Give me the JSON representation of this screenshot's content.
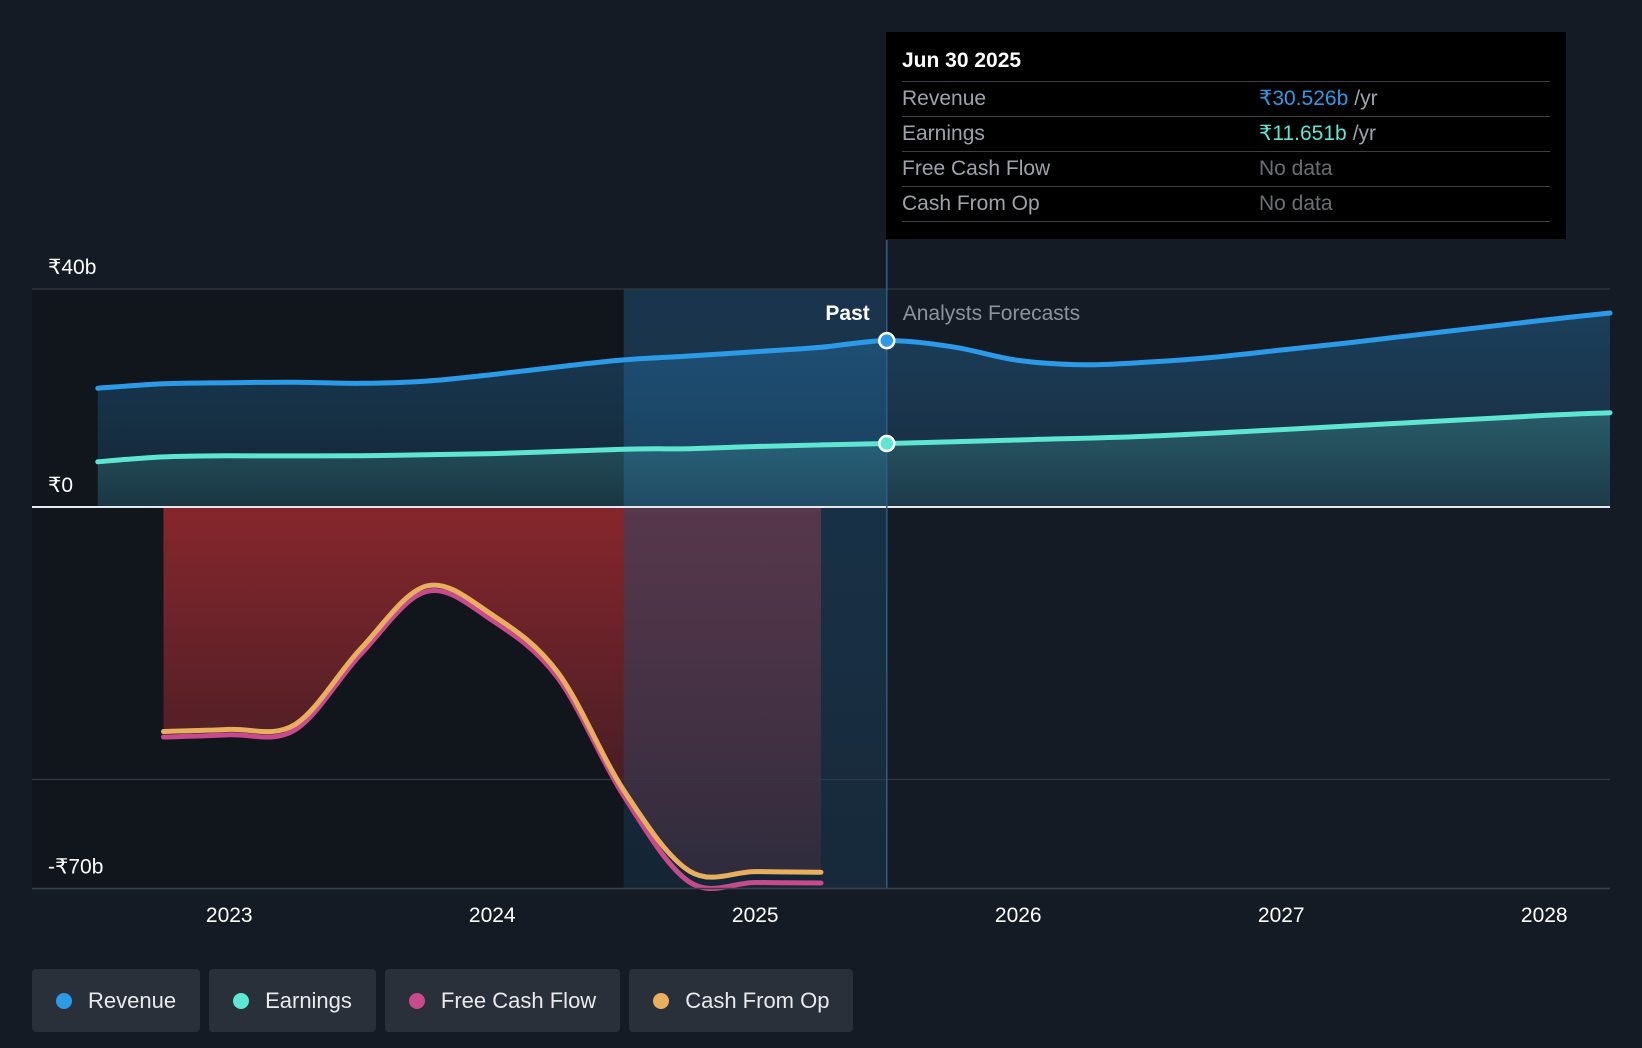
{
  "tooltip": {
    "date": "Jun 30 2025",
    "rows": [
      {
        "label": "Revenue",
        "value": "₹30.526b",
        "unit": "/yr",
        "color": "#2b9be8"
      },
      {
        "label": "Earnings",
        "value": "₹11.651b",
        "unit": "/yr",
        "color": "#5ee6d2"
      },
      {
        "label": "Free Cash Flow",
        "value": "No data",
        "unit": "",
        "color": "#6b6f74"
      },
      {
        "label": "Cash From Op",
        "value": "No data",
        "unit": "",
        "color": "#6b6f74"
      }
    ]
  },
  "legend": [
    {
      "label": "Revenue",
      "color": "#2b9be8"
    },
    {
      "label": "Earnings",
      "color": "#5ee6d2"
    },
    {
      "label": "Free Cash Flow",
      "color": "#c84a8c"
    },
    {
      "label": "Cash From Op",
      "color": "#e8b05e"
    }
  ],
  "chart_data": {
    "type": "area",
    "title": "",
    "xlabel": "",
    "ylabel": "",
    "ylim": [
      -70,
      40
    ],
    "xlim": [
      2022.25,
      2028.25
    ],
    "x_ticks": [
      2023,
      2024,
      2025,
      2026,
      2027,
      2028
    ],
    "y_tick_labels": [
      {
        "value": 40,
        "label": "₹40b"
      },
      {
        "value": 0,
        "label": "₹0"
      },
      {
        "value": -70,
        "label": "-₹70b"
      }
    ],
    "gridlines_at": [
      40,
      0,
      -50,
      -70
    ],
    "past_label": "Past",
    "forecast_label": "Analysts Forecasts",
    "divider_x": 2025.5,
    "highlight_start_x": 2024.5,
    "series": [
      {
        "name": "Revenue",
        "color": "#2b9be8",
        "x": [
          2022.5,
          2022.75,
          2023.0,
          2023.25,
          2023.5,
          2023.75,
          2024.0,
          2024.25,
          2024.5,
          2024.75,
          2025.0,
          2025.25,
          2025.5,
          2025.75,
          2026.0,
          2026.25,
          2026.5,
          2026.75,
          2027.0,
          2027.25,
          2027.5,
          2027.75,
          2028.0,
          2028.25
        ],
        "values": [
          21.8,
          22.6,
          22.8,
          22.9,
          22.7,
          23.1,
          24.3,
          25.7,
          27.0,
          27.7,
          28.5,
          29.3,
          30.526,
          29.4,
          26.9,
          26.1,
          26.6,
          27.5,
          28.8,
          30.1,
          31.5,
          32.9,
          34.3,
          35.6
        ]
      },
      {
        "name": "Earnings",
        "color": "#5ee6d2",
        "x": [
          2022.5,
          2022.75,
          2023.0,
          2023.5,
          2024.0,
          2024.5,
          2024.75,
          2025.0,
          2025.25,
          2025.5,
          2026.0,
          2026.5,
          2027.0,
          2027.5,
          2028.0,
          2028.25
        ],
        "values": [
          8.3,
          9.2,
          9.4,
          9.4,
          9.8,
          10.6,
          10.7,
          11.1,
          11.4,
          11.651,
          12.3,
          13.0,
          14.2,
          15.5,
          16.8,
          17.3
        ]
      },
      {
        "name": "Free Cash Flow",
        "color": "#c84a8c",
        "x": [
          2022.75,
          2023.0,
          2023.25,
          2023.5,
          2023.75,
          2024.0,
          2024.25,
          2024.5,
          2024.75,
          2025.0,
          2025.25
        ],
        "values": [
          -42.2,
          -41.8,
          -40.9,
          -27.0,
          -15.5,
          -20.8,
          -31.4,
          -53.0,
          -68.8,
          -68.9,
          -69.0
        ]
      },
      {
        "name": "Cash From Op",
        "color": "#e8b05e",
        "x": [
          2022.75,
          2023.0,
          2023.25,
          2023.5,
          2023.75,
          2024.0,
          2024.25,
          2024.5,
          2024.75,
          2025.0,
          2025.25
        ],
        "values": [
          -41.2,
          -40.8,
          -39.9,
          -26.0,
          -14.5,
          -19.8,
          -30.4,
          -52.0,
          -66.8,
          -66.9,
          -67.0
        ]
      }
    ]
  }
}
